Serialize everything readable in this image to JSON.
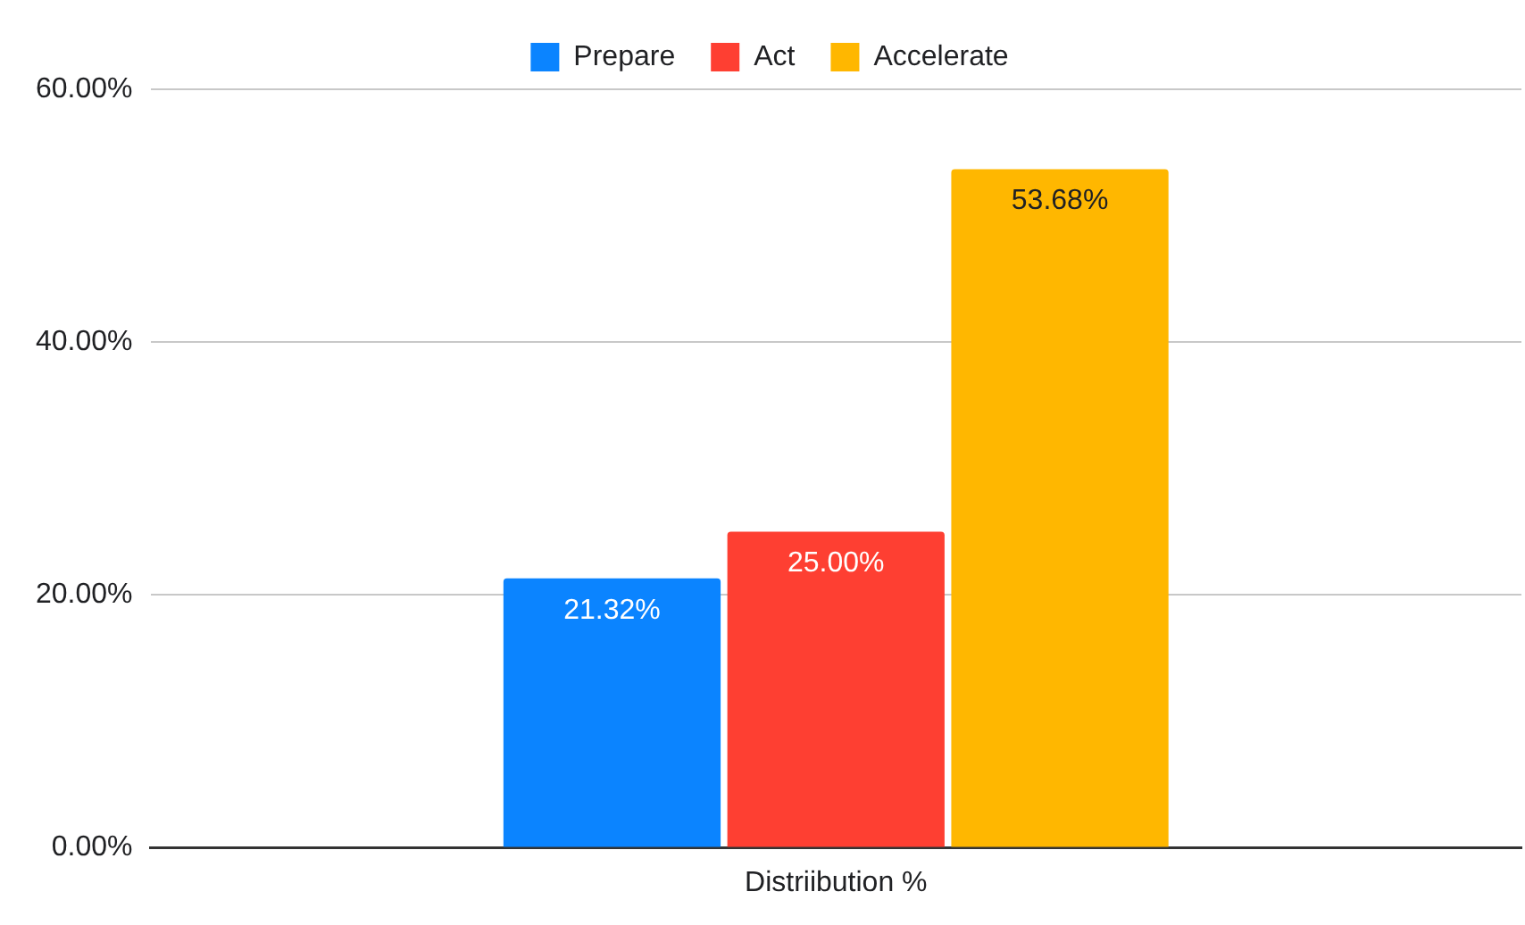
{
  "chart_data": {
    "type": "bar",
    "categories": [
      "Distriibution %"
    ],
    "series": [
      {
        "name": "Prepare",
        "color": "#0b84ff",
        "values": [
          21.32
        ],
        "value_labels": [
          "21.32%"
        ]
      },
      {
        "name": "Act",
        "color": "#fe3f32",
        "values": [
          25.0
        ],
        "value_labels": [
          "25.00%"
        ]
      },
      {
        "name": "Accelerate",
        "color": "#ffb700",
        "values": [
          53.68
        ],
        "value_labels": [
          "53.68%"
        ]
      }
    ],
    "ylim": [
      0,
      60
    ],
    "yticks": [
      {
        "value": 0,
        "label": "0.00%"
      },
      {
        "value": 20,
        "label": "20.00%"
      },
      {
        "value": 40,
        "label": "40.00%"
      },
      {
        "value": 60,
        "label": "60.00%"
      }
    ],
    "grid": "y",
    "legend": "top"
  }
}
